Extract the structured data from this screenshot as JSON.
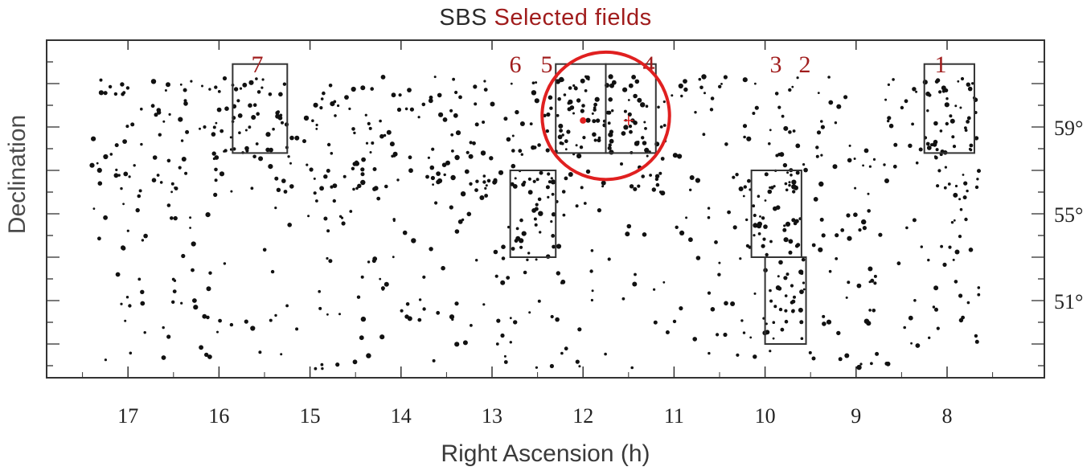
{
  "title": {
    "main": "SBS",
    "subtitle": "Selected fields"
  },
  "colors": {
    "points": "#111111",
    "field_numbers": "#a01c1c",
    "highlight_circle": "#e02020",
    "frame": "#333333"
  },
  "chart_data": {
    "type": "scatter",
    "title": "SBS",
    "subtitle": "Selected fields",
    "xlabel": "Right Ascension (h)",
    "ylabel": "Declination",
    "x_ticks": [
      "17",
      "16",
      "15",
      "14",
      "13",
      "12",
      "11",
      "10",
      "9",
      "8"
    ],
    "y_ticks": [
      "59°",
      "55°",
      "51°"
    ],
    "x_axis_reversed": true,
    "grid": false,
    "fields": [
      {
        "label": "1",
        "ra": [
          7.7,
          8.25
        ],
        "dec": [
          57.8,
          61.9
        ]
      },
      {
        "label": "2",
        "ra": [
          9.55,
          10.0
        ],
        "dec": [
          49.0,
          53.0
        ]
      },
      {
        "label": "3",
        "ra": [
          9.6,
          10.15
        ],
        "dec": [
          53.0,
          57.0
        ]
      },
      {
        "label": "4",
        "ra": [
          11.2,
          11.75
        ],
        "dec": [
          57.8,
          61.9
        ]
      },
      {
        "label": "5",
        "ra": [
          11.75,
          12.3
        ],
        "dec": [
          57.8,
          61.9
        ]
      },
      {
        "label": "6",
        "ra": [
          12.3,
          12.8
        ],
        "dec": [
          53.0,
          57.0
        ]
      },
      {
        "label": "7",
        "ra": [
          15.25,
          15.85
        ],
        "dec": [
          57.8,
          61.9
        ]
      }
    ],
    "highlight": {
      "ra": 11.75,
      "dec": 59.7,
      "radius_h": 0.7
    },
    "markers": [
      {
        "ra": 12.0,
        "dec": 59.3,
        "color": "#e02020",
        "symbol": "dot"
      },
      {
        "ra": 11.5,
        "dec": 59.3,
        "color": "#e02020",
        "symbol": "plus"
      }
    ],
    "points": {
      "count": 1100,
      "note": "SBS galaxy positions across survey strip"
    }
  }
}
